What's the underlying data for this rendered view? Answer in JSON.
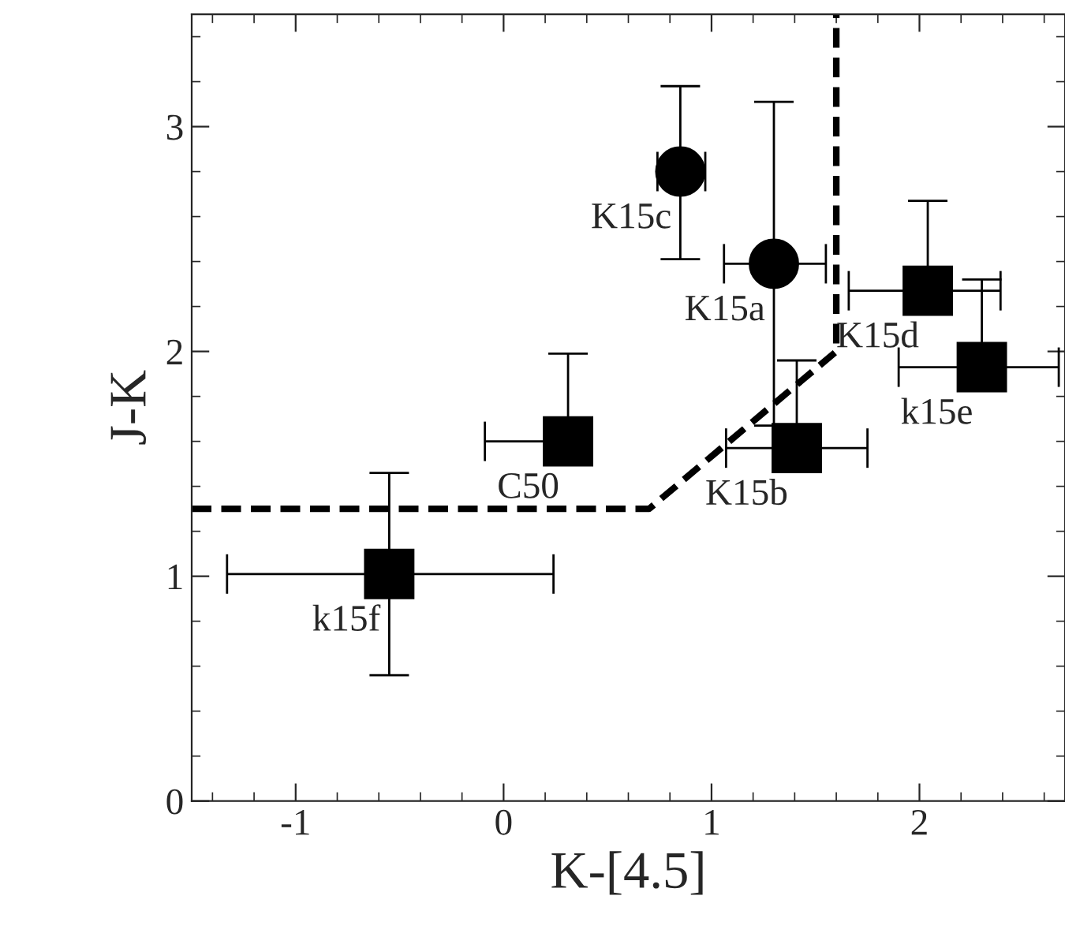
{
  "chart_data": {
    "type": "scatter",
    "xlabel": "K-[4.5]",
    "ylabel": "J-K",
    "xlim": [
      -1.5,
      2.7
    ],
    "ylim": [
      0,
      3.5
    ],
    "xticks": [
      -1,
      0,
      1,
      2
    ],
    "yticks": [
      0,
      1,
      2,
      3
    ],
    "grid": false,
    "legend": false,
    "series": [
      {
        "marker": "circle",
        "color": "#000000",
        "x": [
          0.85,
          1.3
        ],
        "values": [
          2.8,
          2.39
        ],
        "errors": [
          [
            2.41,
            3.18
          ],
          [
            1.67,
            3.11
          ]
        ],
        "xerrors": [
          [
            0.74,
            0.97
          ],
          [
            1.06,
            1.55
          ]
        ]
      },
      {
        "marker": "square",
        "color": "#000000",
        "x": [
          2.04,
          2.3,
          0.31,
          1.41,
          -0.55
        ],
        "values": [
          2.27,
          1.93,
          1.6,
          1.57,
          1.01
        ],
        "errors": [
          [
            2.27,
            2.67
          ],
          [
            1.93,
            2.32
          ],
          [
            1.6,
            1.99
          ],
          [
            1.57,
            1.96
          ],
          [
            0.56,
            1.46
          ]
        ],
        "xerrors": [
          [
            1.66,
            2.39
          ],
          [
            1.9,
            2.67
          ],
          [
            -0.09,
            0.31
          ],
          [
            1.07,
            1.75
          ],
          [
            -1.33,
            0.24
          ]
        ]
      },
      {
        "type": "line",
        "line_style": "dashed",
        "marker": "none",
        "color": "#000000",
        "x": [
          -1.5,
          0.7,
          1.6,
          1.6
        ],
        "values": [
          1.3,
          1.3,
          2.0,
          3.5
        ]
      }
    ],
    "annotations": [
      {
        "text": "K15c",
        "x": 0.85,
        "y": 2.8
      },
      {
        "text": "K15a",
        "x": 1.3,
        "y": 2.39
      },
      {
        "text": "K15d",
        "x": 2.04,
        "y": 2.27
      },
      {
        "text": "k15e",
        "x": 2.3,
        "y": 1.93
      },
      {
        "text": "C50",
        "x": 0.31,
        "y": 1.6
      },
      {
        "text": "K15b",
        "x": 1.41,
        "y": 1.57
      },
      {
        "text": "k15f",
        "x": -0.55,
        "y": 1.01
      }
    ]
  }
}
